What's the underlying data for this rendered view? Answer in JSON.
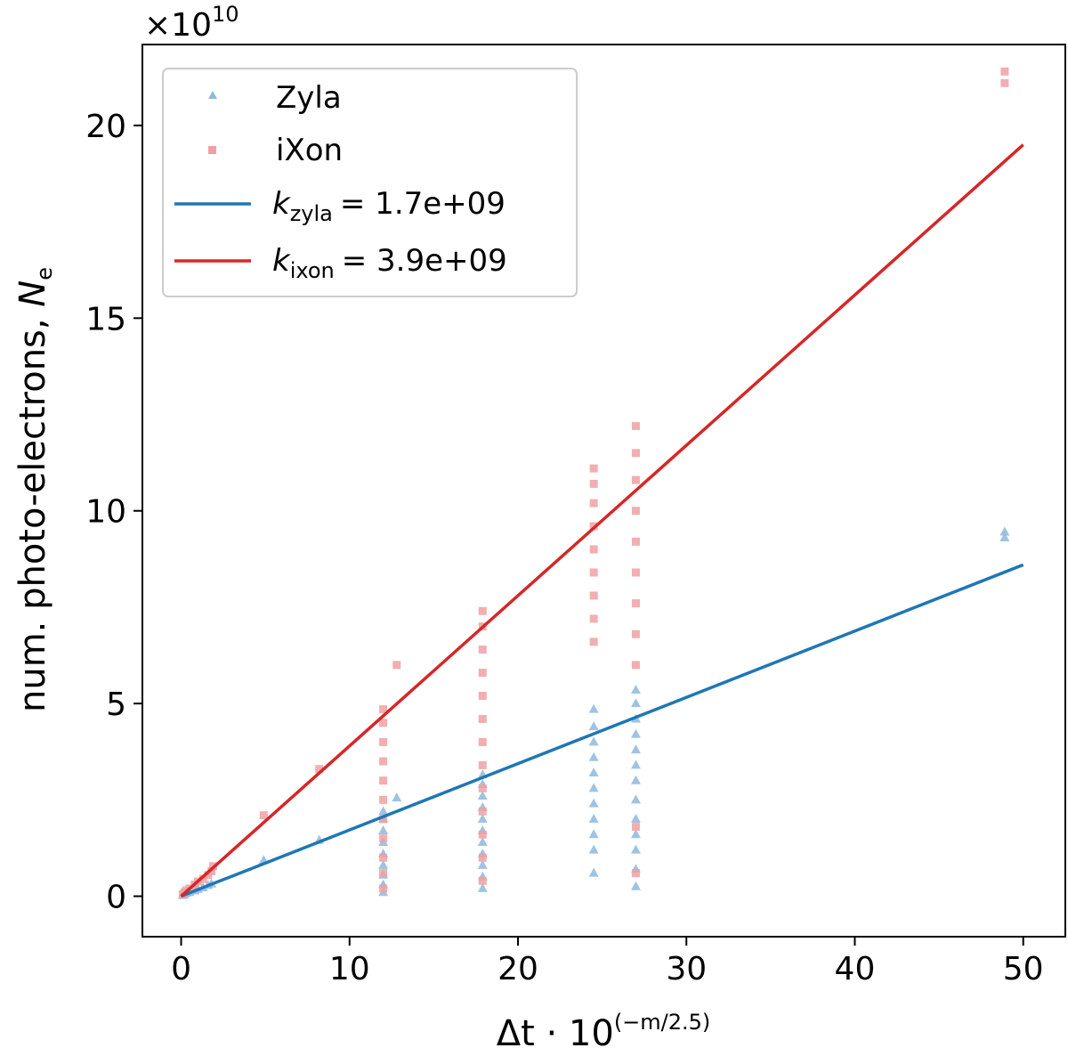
{
  "chart_data": {
    "type": "scatter",
    "title": "",
    "xlabel": {
      "base": "Δt · 10",
      "exponent": "(−m/2.5)"
    },
    "ylabel": {
      "text": "num. photo-electrons, ",
      "symbol": "N",
      "subscript": "e"
    },
    "y_multiplier": {
      "base": "×10",
      "exponent": "10"
    },
    "xlim": [
      -2.3,
      52.5
    ],
    "ylim": [
      -1.05,
      22.1
    ],
    "x_ticks": [
      0,
      10,
      20,
      30,
      40,
      50
    ],
    "x_tick_labels": [
      "0",
      "10",
      "20",
      "30",
      "40",
      "50"
    ],
    "y_ticks": [
      0,
      5,
      10,
      15,
      20
    ],
    "y_tick_labels": [
      "0",
      "5",
      "10",
      "15",
      "20"
    ],
    "grid": false,
    "legend_position": "top-left",
    "colors": {
      "zyla": "#1f77b4",
      "ixon": "#d62728",
      "zyla_marker": "#8fb9dc",
      "ixon_marker": "#f0a0a2"
    },
    "series": [
      {
        "name": "Zyla",
        "kind": "scatter",
        "marker": "triangle",
        "points": [
          [
            0.1,
            0.02
          ],
          [
            0.2,
            0.05
          ],
          [
            0.3,
            0.08
          ],
          [
            0.5,
            0.1
          ],
          [
            0.8,
            0.14
          ],
          [
            1.0,
            0.18
          ],
          [
            1.3,
            0.22
          ],
          [
            1.6,
            0.28
          ],
          [
            1.8,
            0.32
          ],
          [
            4.9,
            0.93
          ],
          [
            8.2,
            1.45
          ],
          [
            12.8,
            2.55
          ],
          [
            12.0,
            0.1
          ],
          [
            12.0,
            0.3
          ],
          [
            12.0,
            0.55
          ],
          [
            12.0,
            0.8
          ],
          [
            12.0,
            1.1
          ],
          [
            12.0,
            1.4
          ],
          [
            12.0,
            1.7
          ],
          [
            12.0,
            2.0
          ],
          [
            12.0,
            2.2
          ],
          [
            17.9,
            0.2
          ],
          [
            17.9,
            0.5
          ],
          [
            17.9,
            0.8
          ],
          [
            17.9,
            1.1
          ],
          [
            17.9,
            1.4
          ],
          [
            17.9,
            1.7
          ],
          [
            17.9,
            2.0
          ],
          [
            17.9,
            2.3
          ],
          [
            17.9,
            2.6
          ],
          [
            17.9,
            2.9
          ],
          [
            17.9,
            3.15
          ],
          [
            24.5,
            0.6
          ],
          [
            24.5,
            1.2
          ],
          [
            24.5,
            1.6
          ],
          [
            24.5,
            2.0
          ],
          [
            24.5,
            2.4
          ],
          [
            24.5,
            2.8
          ],
          [
            24.5,
            3.2
          ],
          [
            24.5,
            3.6
          ],
          [
            24.5,
            4.0
          ],
          [
            24.5,
            4.4
          ],
          [
            24.5,
            4.85
          ],
          [
            27.0,
            0.25
          ],
          [
            27.0,
            0.7
          ],
          [
            27.0,
            1.2
          ],
          [
            27.0,
            1.6
          ],
          [
            27.0,
            2.0
          ],
          [
            27.0,
            2.5
          ],
          [
            27.0,
            3.0
          ],
          [
            27.0,
            3.4
          ],
          [
            27.0,
            3.8
          ],
          [
            27.0,
            4.2
          ],
          [
            27.0,
            4.6
          ],
          [
            27.0,
            5.0
          ],
          [
            27.0,
            5.35
          ],
          [
            48.9,
            9.3
          ],
          [
            48.9,
            9.45
          ]
        ]
      },
      {
        "name": "iXon",
        "kind": "scatter",
        "marker": "square",
        "points": [
          [
            0.1,
            0.05
          ],
          [
            0.2,
            0.1
          ],
          [
            0.3,
            0.15
          ],
          [
            0.5,
            0.2
          ],
          [
            0.8,
            0.3
          ],
          [
            1.0,
            0.38
          ],
          [
            1.3,
            0.45
          ],
          [
            1.6,
            0.55
          ],
          [
            1.8,
            0.65
          ],
          [
            1.9,
            0.78
          ],
          [
            4.9,
            2.1
          ],
          [
            8.2,
            3.3
          ],
          [
            12.8,
            6.0
          ],
          [
            12.0,
            0.2
          ],
          [
            12.0,
            0.6
          ],
          [
            12.0,
            1.0
          ],
          [
            12.0,
            1.5
          ],
          [
            12.0,
            2.0
          ],
          [
            12.0,
            2.5
          ],
          [
            12.0,
            3.0
          ],
          [
            12.0,
            3.5
          ],
          [
            12.0,
            4.0
          ],
          [
            12.0,
            4.5
          ],
          [
            12.0,
            4.85
          ],
          [
            17.9,
            0.4
          ],
          [
            17.9,
            1.0
          ],
          [
            17.9,
            1.6
          ],
          [
            17.9,
            2.2
          ],
          [
            17.9,
            2.8
          ],
          [
            17.9,
            3.4
          ],
          [
            17.9,
            4.0
          ],
          [
            17.9,
            4.6
          ],
          [
            17.9,
            5.2
          ],
          [
            17.9,
            5.8
          ],
          [
            17.9,
            6.4
          ],
          [
            17.9,
            7.0
          ],
          [
            17.9,
            7.4
          ],
          [
            24.5,
            6.6
          ],
          [
            24.5,
            7.2
          ],
          [
            24.5,
            7.8
          ],
          [
            24.5,
            8.4
          ],
          [
            24.5,
            9.0
          ],
          [
            24.5,
            9.6
          ],
          [
            24.5,
            10.2
          ],
          [
            24.5,
            10.7
          ],
          [
            24.5,
            11.1
          ],
          [
            27.0,
            0.6
          ],
          [
            27.0,
            1.8
          ],
          [
            27.0,
            6.0
          ],
          [
            27.0,
            6.8
          ],
          [
            27.0,
            7.6
          ],
          [
            27.0,
            8.4
          ],
          [
            27.0,
            9.2
          ],
          [
            27.0,
            10.0
          ],
          [
            27.0,
            10.8
          ],
          [
            27.0,
            11.5
          ],
          [
            27.0,
            12.2
          ],
          [
            48.9,
            21.1
          ],
          [
            48.9,
            21.4
          ]
        ]
      },
      {
        "name": "k_zyla",
        "kind": "line",
        "label_symbol": "k",
        "label_subscript": "zyla",
        "label_value": "=  1.7e+09",
        "x": [
          0,
          50
        ],
        "y": [
          0,
          8.6
        ]
      },
      {
        "name": "k_ixon",
        "kind": "line",
        "label_symbol": "k",
        "label_subscript": "ixon",
        "label_value": "=  3.9e+09",
        "x": [
          0,
          50
        ],
        "y": [
          0,
          19.5
        ]
      }
    ]
  }
}
